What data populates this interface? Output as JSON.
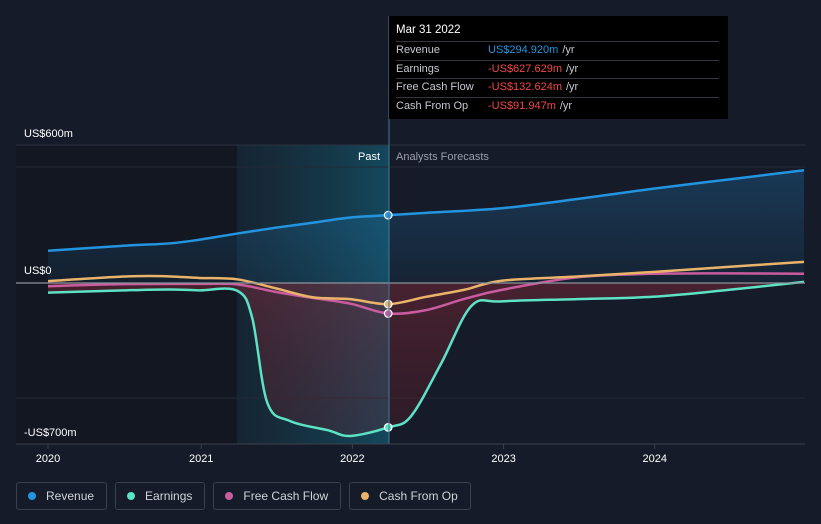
{
  "chart_data": {
    "type": "line",
    "y_axis": {
      "top_label": "US$600m",
      "zero_label": "US$0",
      "bottom_label": "-US$700m"
    },
    "x_ticks": [
      "2020",
      "2021",
      "2022",
      "2023",
      "2024"
    ],
    "regions": {
      "past": "Past",
      "forecast": "Analysts Forecasts"
    },
    "series": [
      {
        "name": "Revenue",
        "color": "#2394df",
        "points": [
          [
            2020.0,
            140
          ],
          [
            2020.5,
            162
          ],
          [
            2020.8,
            172
          ],
          [
            2021.0,
            188
          ],
          [
            2021.25,
            215
          ],
          [
            2021.5,
            240
          ],
          [
            2021.75,
            262
          ],
          [
            2022.0,
            285
          ],
          [
            2022.25,
            294.9
          ],
          [
            2022.5,
            305
          ],
          [
            2023.0,
            325
          ],
          [
            2023.5,
            365
          ],
          [
            2024.0,
            410
          ],
          [
            2024.5,
            450
          ],
          [
            2025.0,
            490
          ]
        ]
      },
      {
        "name": "Earnings",
        "color": "#5ce2c5",
        "points": [
          [
            2020.0,
            -42
          ],
          [
            2020.5,
            -32
          ],
          [
            2020.8,
            -28
          ],
          [
            2021.0,
            -32
          ],
          [
            2021.25,
            -33
          ],
          [
            2021.35,
            -150
          ],
          [
            2021.45,
            -520
          ],
          [
            2021.6,
            -600
          ],
          [
            2021.85,
            -640
          ],
          [
            2022.0,
            -665
          ],
          [
            2022.25,
            -627.6
          ],
          [
            2022.4,
            -580
          ],
          [
            2022.6,
            -350
          ],
          [
            2022.8,
            -100
          ],
          [
            2023.0,
            -80
          ],
          [
            2023.5,
            -70
          ],
          [
            2024.0,
            -60
          ],
          [
            2024.5,
            -30
          ],
          [
            2025.0,
            5
          ]
        ]
      },
      {
        "name": "Free Cash Flow",
        "color": "#c95c9f",
        "points": [
          [
            2020.0,
            -14
          ],
          [
            2020.5,
            -5
          ],
          [
            2021.0,
            -4
          ],
          [
            2021.25,
            -6
          ],
          [
            2021.5,
            -38
          ],
          [
            2021.75,
            -65
          ],
          [
            2022.0,
            -90
          ],
          [
            2022.25,
            -132.6
          ],
          [
            2022.5,
            -118
          ],
          [
            2022.75,
            -70
          ],
          [
            2023.0,
            -30
          ],
          [
            2023.5,
            25
          ],
          [
            2024.0,
            40
          ],
          [
            2024.5,
            42
          ],
          [
            2025.0,
            40
          ]
        ]
      },
      {
        "name": "Cash From Op",
        "color": "#e9b46a",
        "points": [
          [
            2020.0,
            8
          ],
          [
            2020.5,
            28
          ],
          [
            2020.75,
            30
          ],
          [
            2021.0,
            22
          ],
          [
            2021.25,
            16
          ],
          [
            2021.5,
            -22
          ],
          [
            2021.75,
            -62
          ],
          [
            2022.0,
            -70
          ],
          [
            2022.25,
            -91.9
          ],
          [
            2022.5,
            -60
          ],
          [
            2022.75,
            -30
          ],
          [
            2023.0,
            10
          ],
          [
            2023.5,
            28
          ],
          [
            2024.0,
            48
          ],
          [
            2024.5,
            70
          ],
          [
            2025.0,
            92
          ]
        ]
      }
    ]
  },
  "tooltip": {
    "date": "Mar 31 2022",
    "rows": [
      {
        "label": "Revenue",
        "value": "US$294.920m",
        "unit": "/yr",
        "color": "#2394df"
      },
      {
        "label": "Earnings",
        "value": "-US$627.629m",
        "unit": "/yr",
        "color": "#f04848"
      },
      {
        "label": "Free Cash Flow",
        "value": "-US$132.624m",
        "unit": "/yr",
        "color": "#f04848"
      },
      {
        "label": "Cash From Op",
        "value": "-US$91.947m",
        "unit": "/yr",
        "color": "#f04848"
      }
    ]
  },
  "legend": [
    {
      "label": "Revenue",
      "color": "#2394df"
    },
    {
      "label": "Earnings",
      "color": "#5ce2c5"
    },
    {
      "label": "Free Cash Flow",
      "color": "#c95c9f"
    },
    {
      "label": "Cash From Op",
      "color": "#e9b46a"
    }
  ]
}
